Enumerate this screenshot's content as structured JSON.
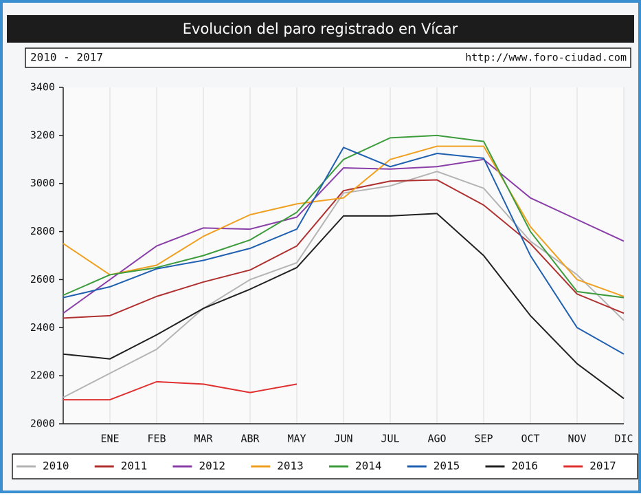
{
  "chart_data": {
    "type": "line",
    "title": "Evolucion del paro registrado en Vícar",
    "subtitle": "2010 - 2017",
    "source": "http://www.foro-ciudad.com",
    "categories": [
      null,
      "ENE",
      "FEB",
      "MAR",
      "ABR",
      "MAY",
      "JUN",
      "JUL",
      "AGO",
      "SEP",
      "OCT",
      "NOV",
      "DIC"
    ],
    "series": [
      {
        "name": "2010",
        "color": "#b4b4b4",
        "values": [
          2110,
          2210,
          2310,
          2480,
          2600,
          2670,
          2960,
          2990,
          3050,
          2980,
          2760,
          2620,
          2430
        ]
      },
      {
        "name": "2011",
        "color": "#b03030",
        "values": [
          2440,
          2450,
          2530,
          2590,
          2640,
          2740,
          2970,
          3010,
          3015,
          2910,
          2750,
          2540,
          2460
        ]
      },
      {
        "name": "2012",
        "color": "#8a3fa8",
        "values": [
          2460,
          2600,
          2740,
          2815,
          2810,
          2860,
          3065,
          3060,
          3070,
          3100,
          2940,
          2850,
          2760
        ]
      },
      {
        "name": "2013",
        "color": "#f0a020",
        "values": [
          2750,
          2620,
          2660,
          2780,
          2870,
          2915,
          2940,
          3100,
          3155,
          3155,
          2820,
          2600,
          2530
        ]
      },
      {
        "name": "2014",
        "color": "#3c9c3c",
        "values": [
          2535,
          2620,
          2650,
          2700,
          2765,
          2880,
          3100,
          3190,
          3200,
          3175,
          2800,
          2550,
          2525
        ]
      },
      {
        "name": "2015",
        "color": "#2060b0",
        "values": [
          2525,
          2570,
          2645,
          2680,
          2730,
          2810,
          3150,
          3070,
          3125,
          3105,
          2700,
          2400,
          2290
        ]
      },
      {
        "name": "2016",
        "color": "#202020",
        "values": [
          2290,
          2270,
          2370,
          2480,
          2560,
          2650,
          2865,
          2865,
          2875,
          2700,
          2450,
          2250,
          2105
        ]
      },
      {
        "name": "2017",
        "color": "#e03030",
        "values": [
          2100,
          2100,
          2175,
          2165,
          2130,
          2165,
          null,
          null,
          null,
          null,
          null,
          null,
          null
        ]
      }
    ],
    "ylim": [
      2000,
      3400
    ],
    "yticks": [
      2000,
      2200,
      2400,
      2600,
      2800,
      3000,
      3200,
      3400
    ],
    "grid": "x",
    "legend": "bottom"
  }
}
